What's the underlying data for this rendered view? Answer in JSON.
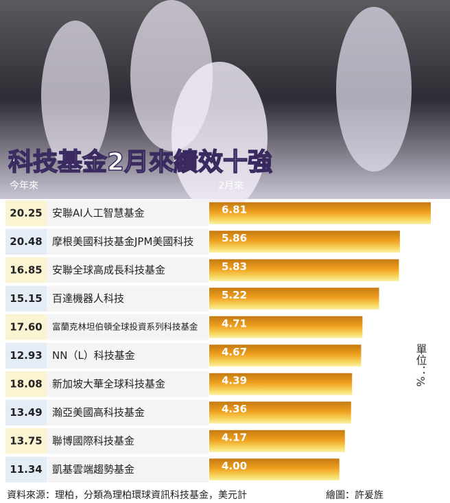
{
  "chart_data": {
    "type": "bar",
    "title": "科技基金2月來績效十強",
    "categories": [
      "安聯AI人工智慧基金",
      "摩根美國科技基金JPM美國科技",
      "安聯全球高成長科技基金",
      "百達機器人科技",
      "富蘭克林坦伯頓全球投資系列科技基金",
      "NN（L）科技基金",
      "新加坡大華全球科技基金",
      "瀚亞美國高科技基金",
      "聯博國際科技基金",
      "凱基雲端趨勢基金"
    ],
    "ytd": {
      "name": "今年來",
      "values": [
        20.25,
        20.48,
        16.85,
        15.15,
        17.6,
        12.93,
        18.08,
        13.49,
        13.75,
        11.34
      ],
      "value_labels": [
        "20.25",
        "20.48",
        "16.85",
        "15.15",
        "17.60",
        "12.93",
        "18.08",
        "13.49",
        "13.75",
        "11.34"
      ]
    },
    "series": [
      {
        "name": "2月來",
        "color": "#f0a020",
        "values": [
          6.81,
          5.86,
          5.83,
          5.22,
          4.71,
          4.67,
          4.39,
          4.36,
          4.17,
          4.0
        ],
        "value_labels": [
          "6.81",
          "5.86",
          "5.83",
          "5.22",
          "4.71",
          "4.67",
          "4.39",
          "4.36",
          "4.17",
          "4.00"
        ]
      }
    ],
    "unit": "單位：%",
    "source": "資料來源：理柏，分類為理柏環球資訊科技基金，美元計",
    "credit": "繪圖：許爰旌"
  }
}
